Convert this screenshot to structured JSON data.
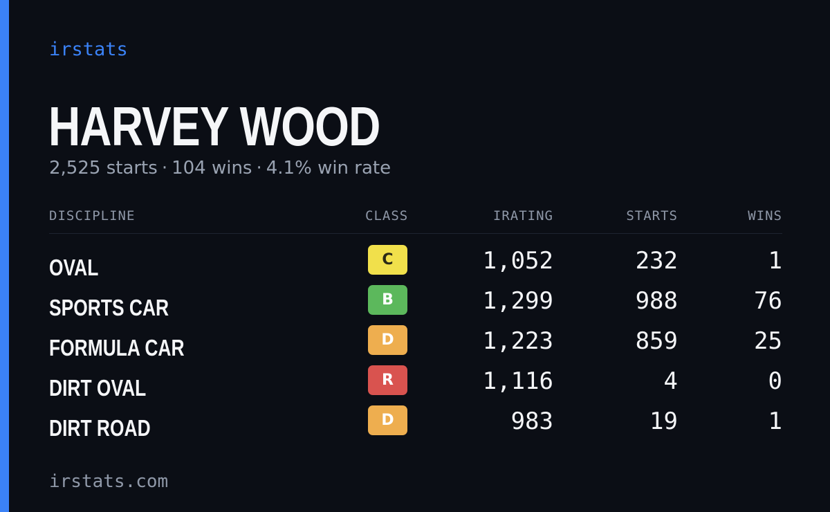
{
  "brand": "irstats",
  "player": {
    "name": "HARVEY WOOD",
    "starts": "2,525 starts",
    "wins": "104 wins",
    "win_rate": "4.1% win rate",
    "separator": "·"
  },
  "table": {
    "headers": {
      "discipline": "DISCIPLINE",
      "class": "CLASS",
      "irating": "IRATING",
      "starts": "STARTS",
      "wins": "WINS"
    },
    "rows": [
      {
        "discipline": "OVAL",
        "class": "C",
        "irating": "1,052",
        "starts": "232",
        "wins": "1"
      },
      {
        "discipline": "SPORTS CAR",
        "class": "B",
        "irating": "1,299",
        "starts": "988",
        "wins": "76"
      },
      {
        "discipline": "FORMULA CAR",
        "class": "D",
        "irating": "1,223",
        "starts": "859",
        "wins": "25"
      },
      {
        "discipline": "DIRT OVAL",
        "class": "R",
        "irating": "1,116",
        "starts": "4",
        "wins": "0"
      },
      {
        "discipline": "DIRT ROAD",
        "class": "D",
        "irating": "983",
        "starts": "19",
        "wins": "1"
      }
    ]
  },
  "class_colors": {
    "C": {
      "bg": "#f1e04b",
      "fg": "#2b2a16"
    },
    "B": {
      "bg": "#5cb85c",
      "fg": "#ffffff"
    },
    "D": {
      "bg": "#eeae4f",
      "fg": "#ffffff"
    },
    "R": {
      "bg": "#d9534f",
      "fg": "#ffffff"
    }
  },
  "colors": {
    "accent": "#3b82f6",
    "background": "#0b0e15",
    "muted_text": "#9aa3b2"
  },
  "footer": {
    "url": "irstats.com"
  }
}
